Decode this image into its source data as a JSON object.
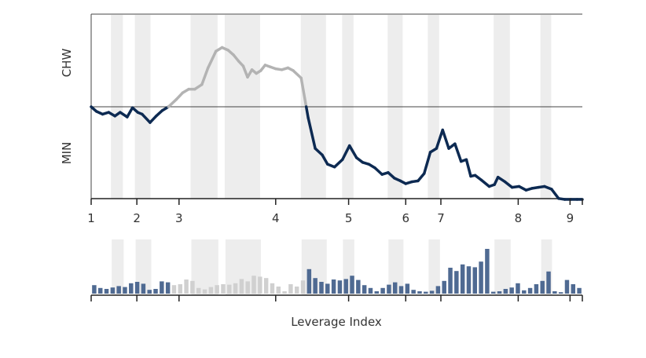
{
  "chart_data": {
    "type": "line",
    "xlabel": "Leverage Index",
    "ylabel_top": "CHW",
    "ylabel_bottom": "MIN",
    "x_ticks": [
      "1",
      "2",
      "3",
      "4",
      "5",
      "6",
      "7",
      "8",
      "9"
    ],
    "x_tick_positions": [
      1,
      1.52,
      2.0,
      3.1,
      3.93,
      4.58,
      4.98,
      5.86,
      6.45
    ],
    "xlim": [
      1,
      6.59
    ],
    "ylim": [
      -1.0,
      1.0
    ],
    "baseline": 0,
    "shaded_bands": [
      [
        1.33,
        1.53
      ],
      [
        1.73,
        1.99
      ],
      [
        2.66,
        3.11
      ],
      [
        3.23,
        3.82
      ],
      [
        4.5,
        4.92
      ],
      [
        5.19,
        5.38
      ],
      [
        5.95,
        6.2
      ],
      [
        6.62,
        6.81
      ],
      [
        7.72,
        7.99
      ],
      [
        8.5,
        8.68
      ]
    ],
    "series": [
      {
        "x": [
          1.0,
          1.06,
          1.13,
          1.2,
          1.27,
          1.33,
          1.41,
          1.47,
          1.53,
          1.58,
          1.67,
          1.74,
          1.81,
          1.88,
          1.97,
          2.04,
          2.11,
          2.18,
          2.26,
          2.33,
          2.42,
          2.49,
          2.56,
          2.62,
          2.68,
          2.73,
          2.78,
          2.83,
          2.88,
          2.93,
          2.98,
          3.04,
          3.1,
          3.17,
          3.24,
          3.3,
          3.39,
          3.47,
          3.55,
          3.63,
          3.69,
          3.77,
          3.86,
          3.94,
          4.02,
          4.09,
          4.16,
          4.23,
          4.31,
          4.38,
          4.45,
          4.52,
          4.58,
          4.65,
          4.72,
          4.79,
          4.86,
          4.93,
          5.0,
          5.07,
          5.14,
          5.21,
          5.27,
          5.32,
          5.37,
          5.44,
          5.53,
          5.59,
          5.63,
          5.71,
          5.79,
          5.87,
          5.95,
          6.02,
          6.09,
          6.16,
          6.24,
          6.32,
          6.39,
          6.46,
          6.53,
          6.59
        ],
        "y": [
          0.0,
          -0.05,
          -0.08,
          -0.06,
          -0.1,
          -0.06,
          -0.11,
          -0.01,
          -0.06,
          -0.08,
          -0.17,
          -0.1,
          -0.04,
          0.0,
          0.08,
          0.15,
          0.19,
          0.19,
          0.24,
          0.42,
          0.6,
          0.64,
          0.61,
          0.56,
          0.49,
          0.44,
          0.32,
          0.4,
          0.36,
          0.39,
          0.45,
          0.43,
          0.41,
          0.4,
          0.42,
          0.39,
          0.31,
          -0.12,
          -0.45,
          -0.52,
          -0.62,
          -0.65,
          -0.57,
          -0.42,
          -0.55,
          -0.6,
          -0.62,
          -0.66,
          -0.73,
          -0.71,
          -0.77,
          -0.8,
          -0.83,
          -0.81,
          -0.8,
          -0.72,
          -0.49,
          -0.45,
          -0.25,
          -0.45,
          -0.4,
          -0.59,
          -0.57,
          -0.75,
          -0.74,
          -0.79,
          -0.86,
          -0.84,
          -0.76,
          -0.81,
          -0.87,
          -0.86,
          -0.9,
          -0.88,
          -0.87,
          -0.86,
          -0.89,
          -0.99,
          -1.0,
          -1.0,
          -1.0,
          -1.0
        ],
        "color_positive": "#b3b3b3",
        "color_negative": "#0d2a52"
      }
    ],
    "bars": {
      "values": [
        0.18,
        0.12,
        0.1,
        0.13,
        0.16,
        0.14,
        0.22,
        0.25,
        0.21,
        0.08,
        0.1,
        0.26,
        0.24,
        0.18,
        0.2,
        0.3,
        0.27,
        0.12,
        0.09,
        0.14,
        0.18,
        0.2,
        0.19,
        0.22,
        0.31,
        0.26,
        0.38,
        0.36,
        0.33,
        0.22,
        0.15,
        0.05,
        0.2,
        0.15,
        0.28,
        0.52,
        0.33,
        0.25,
        0.21,
        0.3,
        0.28,
        0.31,
        0.38,
        0.29,
        0.18,
        0.12,
        0.05,
        0.12,
        0.19,
        0.24,
        0.16,
        0.21,
        0.08,
        0.05,
        0.04,
        0.06,
        0.16,
        0.27,
        0.55,
        0.48,
        0.62,
        0.58,
        0.56,
        0.68,
        0.95,
        0.04,
        0.05,
        0.1,
        0.13,
        0.22,
        0.07,
        0.12,
        0.2,
        0.27,
        0.47,
        0.05,
        0.03,
        0.29,
        0.2,
        0.12
      ],
      "color_positive": "#d0d0d0",
      "color_negative": "#4f6a92"
    },
    "grid": false
  }
}
